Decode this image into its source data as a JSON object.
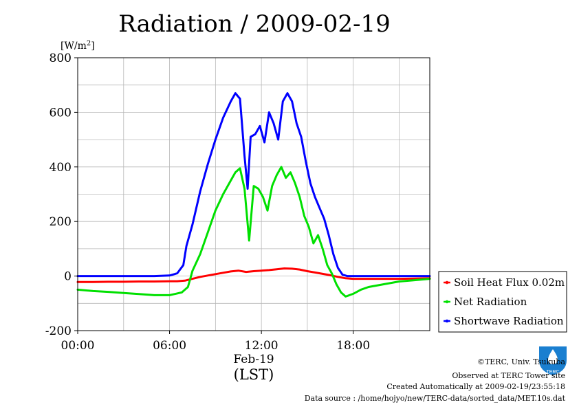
{
  "chart_data": {
    "type": "line",
    "title": "Radiation / 2009-02-19",
    "ylabel": "[W/m2]",
    "ylabel_base": "[W/m",
    "ylabel_sup": "2",
    "ylabel_end": "]",
    "xlabel_date": "Feb-19",
    "xlabel": "(LST)",
    "xlim": [
      0,
      23
    ],
    "ylim": [
      -200,
      800
    ],
    "yticks": [
      -200,
      0,
      200,
      400,
      600,
      800
    ],
    "ytick_labels": [
      "-200",
      "0",
      "200",
      "400",
      "600",
      "800"
    ],
    "xticks": [
      0,
      6,
      12,
      18
    ],
    "xtick_labels": [
      "00:00",
      "06:00",
      "12:00",
      "18:00"
    ],
    "grid": true,
    "legend_position": "right",
    "series": [
      {
        "name": "Soil Heat Flux 0.02m",
        "color": "#ff0000",
        "x": [
          0,
          1,
          2,
          3,
          4,
          5,
          6,
          6.5,
          7,
          7.5,
          8,
          8.5,
          9,
          9.5,
          10,
          10.5,
          11,
          11.5,
          12,
          12.5,
          13,
          13.5,
          14,
          14.5,
          15,
          15.5,
          16,
          16.5,
          17,
          17.5,
          18,
          19,
          20,
          21,
          22,
          23
        ],
        "y": [
          -22,
          -22,
          -21,
          -21,
          -20,
          -20,
          -19,
          -19,
          -17,
          -10,
          -3,
          2,
          7,
          12,
          17,
          20,
          15,
          18,
          20,
          22,
          25,
          28,
          27,
          24,
          18,
          13,
          8,
          3,
          -3,
          -8,
          -10,
          -10,
          -10,
          -10,
          -9,
          -8
        ]
      },
      {
        "name": "Net Radiation",
        "color": "#00e000",
        "x": [
          0,
          1,
          2,
          3,
          4,
          5,
          6,
          6.8,
          7.2,
          7.5,
          8,
          8.5,
          9,
          9.5,
          10,
          10.3,
          10.6,
          10.9,
          11.2,
          11.5,
          11.8,
          12.1,
          12.4,
          12.7,
          13,
          13.3,
          13.6,
          13.9,
          14.2,
          14.5,
          14.8,
          15.1,
          15.4,
          15.7,
          16,
          16.3,
          16.6,
          16.9,
          17.2,
          17.5,
          18,
          18.5,
          19,
          20,
          21,
          22,
          23
        ],
        "y": [
          -50,
          -55,
          -58,
          -62,
          -66,
          -70,
          -70,
          -60,
          -40,
          20,
          80,
          160,
          240,
          300,
          350,
          380,
          395,
          320,
          130,
          330,
          320,
          290,
          240,
          330,
          370,
          400,
          360,
          380,
          340,
          290,
          220,
          180,
          120,
          150,
          100,
          40,
          10,
          -30,
          -60,
          -75,
          -65,
          -50,
          -40,
          -30,
          -20,
          -15,
          -10
        ]
      },
      {
        "name": "Shortwave Radiation",
        "color": "#0000ff",
        "x": [
          0,
          1,
          2,
          3,
          4,
          5,
          6,
          6.5,
          6.9,
          7.1,
          7.5,
          8,
          8.5,
          9,
          9.5,
          10,
          10.3,
          10.6,
          10.9,
          11.1,
          11.3,
          11.6,
          11.9,
          12.2,
          12.5,
          12.8,
          13.1,
          13.4,
          13.7,
          14,
          14.3,
          14.6,
          14.9,
          15.2,
          15.5,
          15.8,
          16.1,
          16.4,
          16.7,
          17,
          17.3,
          17.6,
          18,
          19,
          20,
          21,
          22,
          23
        ],
        "y": [
          0,
          0,
          0,
          0,
          0,
          0,
          2,
          10,
          40,
          110,
          190,
          310,
          410,
          500,
          580,
          640,
          670,
          650,
          440,
          320,
          510,
          520,
          550,
          490,
          600,
          560,
          500,
          640,
          670,
          640,
          560,
          510,
          420,
          340,
          290,
          250,
          210,
          150,
          80,
          30,
          5,
          0,
          0,
          0,
          0,
          0,
          0,
          0
        ]
      }
    ]
  },
  "credits": {
    "copyright": "©TERC, Univ. Tsukuba",
    "site": "Observed at TERC Tower site",
    "created": "Created Automatically at 2009-02-19/23:55:18",
    "source": "Data source : /home/hojyo/new/TERC-data/sorted_data/MET.10s.dat"
  },
  "logo": {
    "text": "TERC",
    "color": "#1a7fd0"
  }
}
